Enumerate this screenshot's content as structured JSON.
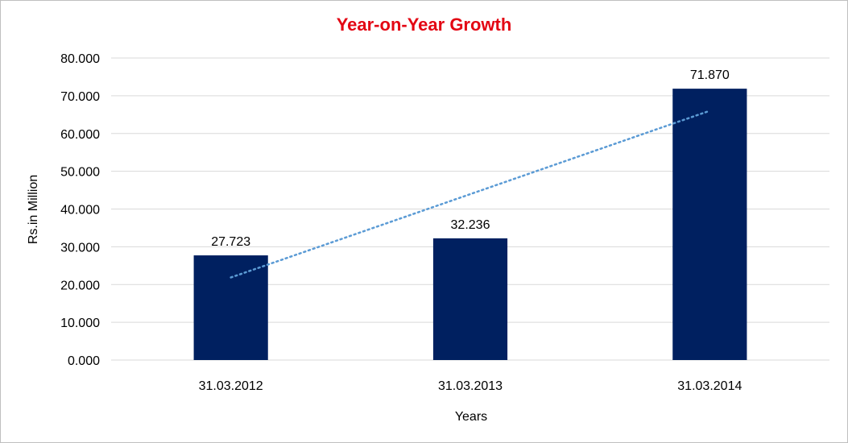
{
  "chart_data": {
    "type": "bar",
    "title": "Year-on-Year Growth",
    "xlabel": "Years",
    "ylabel": "Rs.in Million",
    "categories": [
      "31.03.2012",
      "31.03.2013",
      "31.03.2014"
    ],
    "values": [
      27.723,
      32.236,
      71.87
    ],
    "data_labels": [
      "27.723",
      "32.236",
      "71.870"
    ],
    "ylim": [
      0,
      80
    ],
    "yticks": [
      0,
      10,
      20,
      30,
      40,
      50,
      60,
      70,
      80
    ],
    "ytick_labels": [
      "0.000",
      "10.000",
      "20.000",
      "30.000",
      "40.000",
      "50.000",
      "60.000",
      "70.000",
      "80.000"
    ],
    "trendline": {
      "type": "linear",
      "style": "dotted"
    },
    "grid": true,
    "legend": "none",
    "colors": {
      "bar": "#002060",
      "trendline": "#5b9bd5",
      "title": "#e30613",
      "grid": "#d9d9d9"
    }
  }
}
